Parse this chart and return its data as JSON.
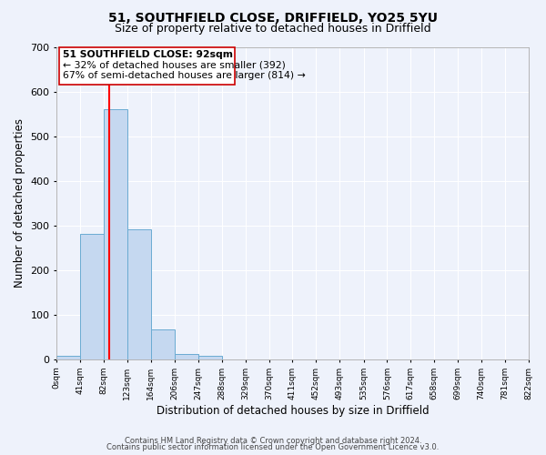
{
  "title": "51, SOUTHFIELD CLOSE, DRIFFIELD, YO25 5YU",
  "subtitle": "Size of property relative to detached houses in Driffield",
  "xlabel": "Distribution of detached houses by size in Driffield",
  "ylabel": "Number of detached properties",
  "bar_edges": [
    0,
    41,
    82,
    123,
    164,
    206,
    247,
    288,
    329,
    370,
    411,
    452,
    493,
    535,
    576,
    617,
    658,
    699,
    740,
    781,
    822
  ],
  "bar_heights": [
    7,
    282,
    560,
    292,
    68,
    13,
    8,
    0,
    0,
    0,
    0,
    0,
    0,
    0,
    0,
    0,
    0,
    0,
    0,
    0
  ],
  "bar_color": "#c5d8f0",
  "bar_edgecolor": "#6aabd2",
  "redline_x": 92,
  "ylim": [
    0,
    700
  ],
  "yticks": [
    0,
    100,
    200,
    300,
    400,
    500,
    600,
    700
  ],
  "xtick_labels": [
    "0sqm",
    "41sqm",
    "82sqm",
    "123sqm",
    "164sqm",
    "206sqm",
    "247sqm",
    "288sqm",
    "329sqm",
    "370sqm",
    "411sqm",
    "452sqm",
    "493sqm",
    "535sqm",
    "576sqm",
    "617sqm",
    "658sqm",
    "699sqm",
    "740sqm",
    "781sqm",
    "822sqm"
  ],
  "annotation_title": "51 SOUTHFIELD CLOSE: 92sqm",
  "annotation_line1": "← 32% of detached houses are smaller (392)",
  "annotation_line2": "67% of semi-detached houses are larger (814) →",
  "annotation_box_color": "#ffffff",
  "annotation_box_edgecolor": "#cc0000",
  "footer1": "Contains HM Land Registry data © Crown copyright and database right 2024.",
  "footer2": "Contains public sector information licensed under the Open Government Licence v3.0.",
  "background_color": "#eef2fb",
  "grid_color": "#ffffff",
  "title_fontsize": 10,
  "subtitle_fontsize": 9
}
